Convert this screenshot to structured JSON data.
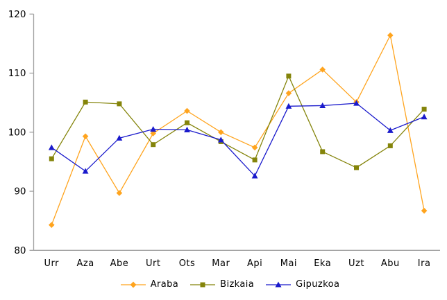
{
  "chart_data": {
    "type": "line",
    "title": "",
    "xlabel": "",
    "ylabel": "",
    "categories": [
      "Urr",
      "Aza",
      "Abe",
      "Urt",
      "Ots",
      "Mar",
      "Api",
      "Mai",
      "Eka",
      "Uzt",
      "Abu",
      "Ira"
    ],
    "series": [
      {
        "name": "Araba",
        "color": "#FFA41E",
        "marker": "diamond",
        "values": [
          84.3,
          99.3,
          89.7,
          99.8,
          103.6,
          100.0,
          97.4,
          106.6,
          110.6,
          105.1,
          116.4,
          86.7
        ]
      },
      {
        "name": "Bizkaia",
        "color": "#84840A",
        "marker": "square",
        "values": [
          95.5,
          105.1,
          104.8,
          97.9,
          101.6,
          98.4,
          95.3,
          109.5,
          96.7,
          94.0,
          97.7,
          103.9
        ]
      },
      {
        "name": "Gipuzkoa",
        "color": "#1A1ACC",
        "marker": "triangle",
        "values": [
          97.4,
          93.4,
          99.0,
          100.5,
          100.4,
          98.7,
          92.6,
          104.4,
          104.5,
          104.9,
          100.3,
          102.6
        ]
      }
    ],
    "ylim": [
      80,
      120
    ],
    "yticks": [
      80,
      90,
      100,
      110,
      120
    ],
    "ytick_labels": [
      "80",
      "90",
      "100",
      "110",
      "120"
    ],
    "grid": false,
    "legend_position": "bottom",
    "axis_color": "#A0A0A0",
    "text_color": "#000000",
    "background_color": "#FFFFFF"
  }
}
